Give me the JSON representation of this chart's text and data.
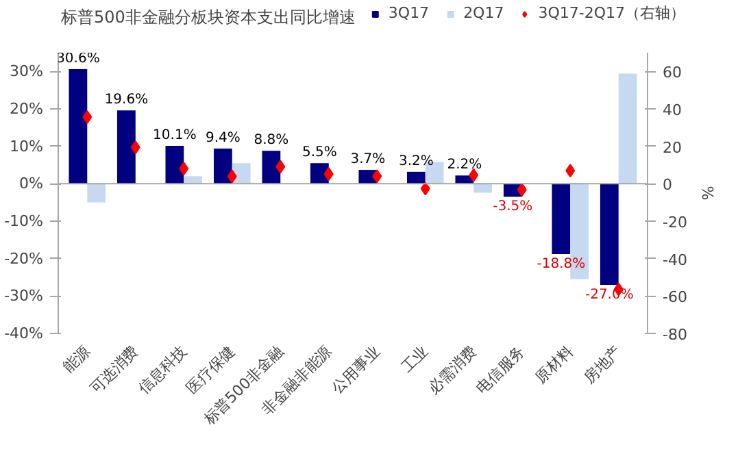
{
  "chart_data": {
    "type": "bar",
    "title": "标普500非金融分板块资本支出同比增速",
    "categories": [
      "能源",
      "可选消费",
      "信息科技",
      "医疗保健",
      "标普500非金融",
      "非金融非能源",
      "公用事业",
      "工业",
      "必需消费",
      "电信服务",
      "原材料",
      "房地产"
    ],
    "series": [
      {
        "name": "3Q17",
        "color": "#000080",
        "values": [
          30.6,
          19.6,
          10.1,
          9.4,
          8.8,
          5.5,
          3.7,
          3.2,
          2.2,
          -3.5,
          -18.8,
          -27.0
        ],
        "value_labels": [
          "30.6%",
          "19.6%",
          "10.1%",
          "9.4%",
          "8.8%",
          "5.5%",
          "3.7%",
          "3.2%",
          "2.2%",
          "-3.5%",
          "-18.8%",
          "-27.0%"
        ]
      },
      {
        "name": "2Q17",
        "color": "#c6d9f0",
        "values": [
          -5.0,
          null,
          2.0,
          5.5,
          null,
          null,
          null,
          5.8,
          -2.4,
          null,
          -25.5,
          29.4
        ]
      },
      {
        "name": "3Q17-2Q17（右轴）",
        "color": "#ff0000",
        "type": "scatter",
        "marker": "diamond",
        "axis": "y2",
        "values": [
          35.6,
          19.4,
          8.1,
          3.9,
          9.1,
          5.2,
          4.0,
          -2.6,
          4.6,
          -3.2,
          7.0,
          -56.4
        ]
      }
    ],
    "ylim": [
      -40,
      35
    ],
    "yticks": [
      {
        "value": -40,
        "label": "-40%"
      },
      {
        "value": -30,
        "label": "-30%"
      },
      {
        "value": -20,
        "label": "-20%"
      },
      {
        "value": -10,
        "label": "-10%"
      },
      {
        "value": 0,
        "label": "0%"
      },
      {
        "value": 10,
        "label": "10%"
      },
      {
        "value": 20,
        "label": "20%"
      },
      {
        "value": 30,
        "label": "30%"
      }
    ],
    "y2lim": [
      -80,
      70
    ],
    "y2ticks": [
      -80,
      -60,
      -40,
      -20,
      0,
      20,
      40,
      60
    ],
    "y2label": "%",
    "ref_lines": [
      {
        "axis": "y",
        "value": 0,
        "color": "#a6a6a6"
      }
    ],
    "legend": "top",
    "grid": false
  }
}
